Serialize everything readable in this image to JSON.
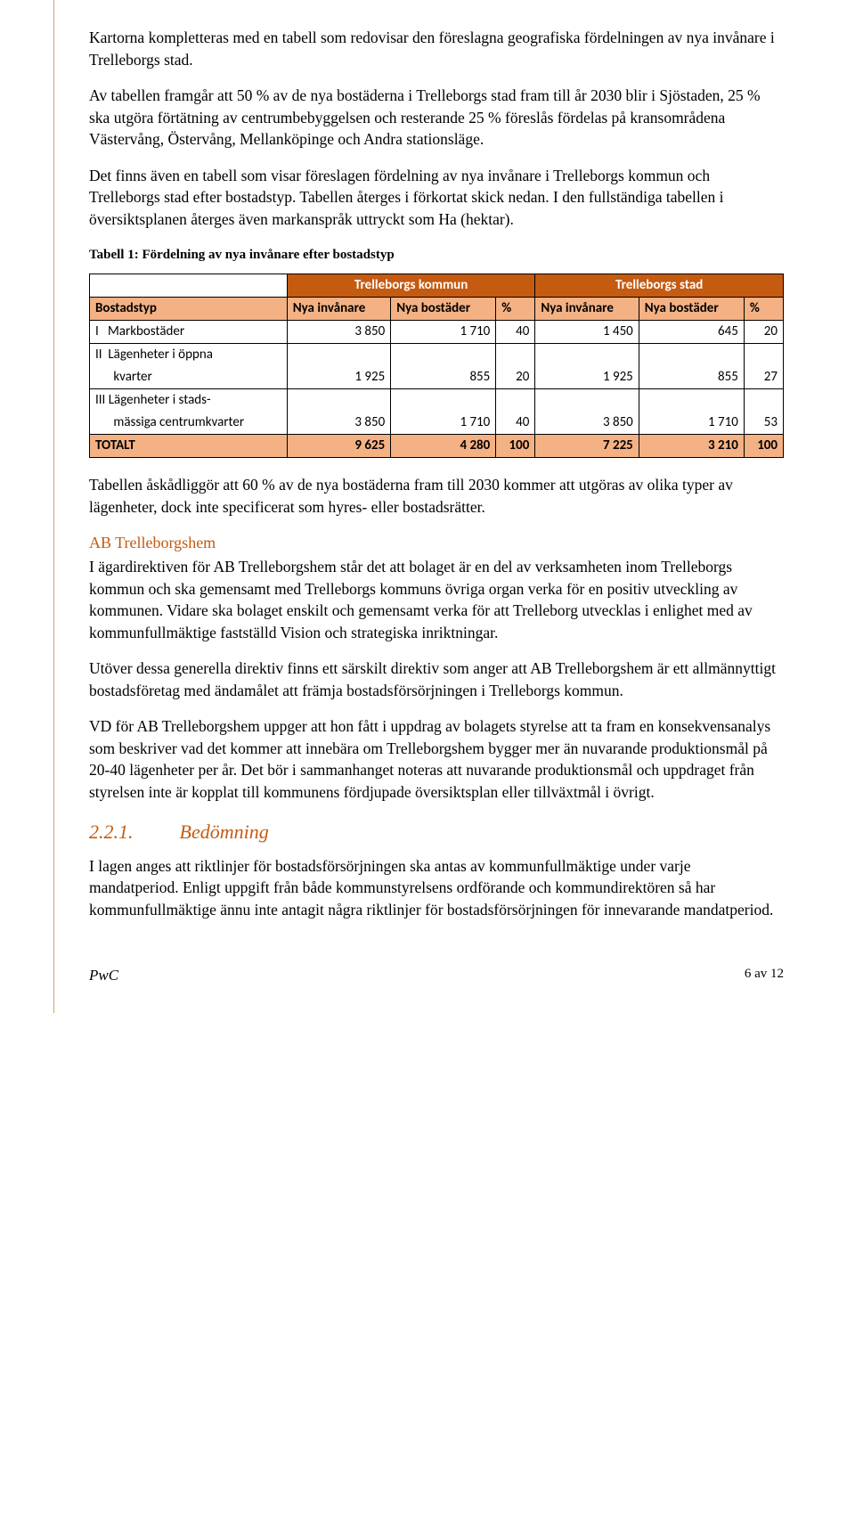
{
  "paragraphs": {
    "p1": "Kartorna kompletteras med en tabell som redovisar den föreslagna geografiska fördelningen av nya invånare i Trelleborgs stad.",
    "p2": "Av tabellen framgår att 50 % av de nya bostäderna i Trelleborgs stad fram till år 2030 blir i Sjöstaden, 25 % ska utgöra förtätning av centrumbebyggelsen och resterande 25 % föreslås fördelas på kransområdena Västervång, Östervång, Mellanköpinge och Andra stationsläge.",
    "p3": "Det finns även en tabell som visar föreslagen fördelning av nya invånare i Trelleborgs kommun och Trelleborgs stad efter bostadstyp. Tabellen återges i förkortat skick nedan. I den fullständiga tabellen i översiktsplanen återges även markanspråk uttryckt som Ha (hektar).",
    "p4": "Tabellen åskådliggör att 60 % av de nya bostäderna fram till 2030 kommer att utgöras av olika typer av lägenheter, dock inte specificerat som hyres- eller bostadsrätter.",
    "p5": "I ägardirektiven för AB Trelleborgshem står det att bolaget är en del av verksamheten inom Trelleborgs kommun och ska gemensamt med Trelleborgs kommuns övriga organ verka för en positiv utveckling av kommunen. Vidare ska bolaget enskilt och gemensamt verka för att Trelleborg utvecklas i enlighet med av kommunfullmäktige fastställd Vision och strategiska inriktningar.",
    "p6": "Utöver dessa generella direktiv finns ett särskilt direktiv som anger att AB Trelleborgshem är ett allmännyttigt bostadsföretag med ändamålet att främja bostadsförsörjningen i Trelleborgs kommun.",
    "p7": "VD för AB Trelleborgshem uppger att hon fått i uppdrag av bolagets styrelse att ta fram en konsekvensanalys som beskriver vad det kommer att innebära om Trelleborgshem bygger mer än nuvarande produktionsmål på 20-40 lägenheter per år. Det bör i sammanhanget noteras att nuvarande produktionsmål och uppdraget från styrelsen inte är kopplat till kommunens fördjupade översiktsplan eller tillväxtmål i övrigt.",
    "p8": "I lagen anges att riktlinjer för bostadsförsörjningen ska antas av kommunfullmäktige under varje mandatperiod. Enligt uppgift från både kommunstyrelsens ordförande och kommundirektören så har kommunfullmäktige ännu inte antagit några riktlinjer för bostadsförsörjningen för innevarande mandatperiod."
  },
  "table": {
    "caption": "Tabell 1: Fördelning av nya invånare efter bostadstyp",
    "group_headers": {
      "g1": "Trelleborgs kommun",
      "g2": "Trelleborgs stad"
    },
    "col_headers": {
      "c0": "Bostadstyp",
      "c1": "Nya invånare",
      "c2": "Nya bostäder",
      "c3": "%",
      "c4": "Nya invånare",
      "c5": "Nya bostäder",
      "c6": "%"
    },
    "rows": {
      "r1": {
        "label": "I   Markbostäder",
        "a1": "3 850",
        "a2": "1 710",
        "a3": "40",
        "b1": "1 450",
        "b2": "645",
        "b3": "20"
      },
      "r2a": {
        "label": "II  Lägenheter i öppna"
      },
      "r2b": {
        "label": "      kvarter",
        "a1": "1 925",
        "a2": "855",
        "a3": "20",
        "b1": "1 925",
        "b2": "855",
        "b3": "27"
      },
      "r3a": {
        "label": "III Lägenheter i stads-"
      },
      "r3b": {
        "label": "      mässiga centrumkvarter",
        "a1": "3 850",
        "a2": "1 710",
        "a3": "40",
        "b1": "3 850",
        "b2": "1 710",
        "b3": "53"
      },
      "total": {
        "label": "TOTALT",
        "a1": "9 625",
        "a2": "4 280",
        "a3": "100",
        "b1": "7 225",
        "b2": "3 210",
        "b3": "100"
      }
    },
    "colors": {
      "group_header_bg": "#c55a11",
      "group_header_fg": "#ffffff",
      "col_header_bg": "#f4b183",
      "total_bg": "#f4b183",
      "border": "#000000"
    }
  },
  "headings": {
    "ab": "AB Trelleborgshem",
    "section_num": "2.2.1.",
    "section_title": "Bedömning"
  },
  "footer": {
    "logo": "PwC",
    "page": "6 av 12"
  }
}
